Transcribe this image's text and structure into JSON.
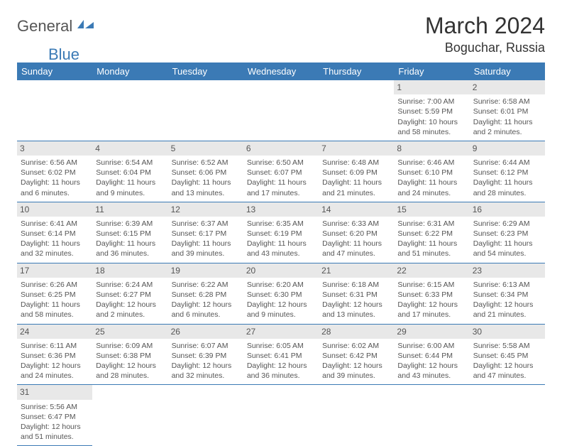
{
  "logo": {
    "general": "General",
    "blue": "Blue"
  },
  "title": "March 2024",
  "location": "Boguchar, Russia",
  "colors": {
    "header_bg": "#3b7ab5",
    "header_fg": "#ffffff",
    "daynum_bg": "#e8e8e8",
    "text": "#555555",
    "border": "#3b7ab5",
    "logo_blue": "#3b7ab5"
  },
  "weekdays": [
    "Sunday",
    "Monday",
    "Tuesday",
    "Wednesday",
    "Thursday",
    "Friday",
    "Saturday"
  ],
  "weeks": [
    [
      null,
      null,
      null,
      null,
      null,
      {
        "n": "1",
        "sr": "7:00 AM",
        "ss": "5:59 PM",
        "dl": "10 hours and 58 minutes."
      },
      {
        "n": "2",
        "sr": "6:58 AM",
        "ss": "6:01 PM",
        "dl": "11 hours and 2 minutes."
      }
    ],
    [
      {
        "n": "3",
        "sr": "6:56 AM",
        "ss": "6:02 PM",
        "dl": "11 hours and 6 minutes."
      },
      {
        "n": "4",
        "sr": "6:54 AM",
        "ss": "6:04 PM",
        "dl": "11 hours and 9 minutes."
      },
      {
        "n": "5",
        "sr": "6:52 AM",
        "ss": "6:06 PM",
        "dl": "11 hours and 13 minutes."
      },
      {
        "n": "6",
        "sr": "6:50 AM",
        "ss": "6:07 PM",
        "dl": "11 hours and 17 minutes."
      },
      {
        "n": "7",
        "sr": "6:48 AM",
        "ss": "6:09 PM",
        "dl": "11 hours and 21 minutes."
      },
      {
        "n": "8",
        "sr": "6:46 AM",
        "ss": "6:10 PM",
        "dl": "11 hours and 24 minutes."
      },
      {
        "n": "9",
        "sr": "6:44 AM",
        "ss": "6:12 PM",
        "dl": "11 hours and 28 minutes."
      }
    ],
    [
      {
        "n": "10",
        "sr": "6:41 AM",
        "ss": "6:14 PM",
        "dl": "11 hours and 32 minutes."
      },
      {
        "n": "11",
        "sr": "6:39 AM",
        "ss": "6:15 PM",
        "dl": "11 hours and 36 minutes."
      },
      {
        "n": "12",
        "sr": "6:37 AM",
        "ss": "6:17 PM",
        "dl": "11 hours and 39 minutes."
      },
      {
        "n": "13",
        "sr": "6:35 AM",
        "ss": "6:19 PM",
        "dl": "11 hours and 43 minutes."
      },
      {
        "n": "14",
        "sr": "6:33 AM",
        "ss": "6:20 PM",
        "dl": "11 hours and 47 minutes."
      },
      {
        "n": "15",
        "sr": "6:31 AM",
        "ss": "6:22 PM",
        "dl": "11 hours and 51 minutes."
      },
      {
        "n": "16",
        "sr": "6:29 AM",
        "ss": "6:23 PM",
        "dl": "11 hours and 54 minutes."
      }
    ],
    [
      {
        "n": "17",
        "sr": "6:26 AM",
        "ss": "6:25 PM",
        "dl": "11 hours and 58 minutes."
      },
      {
        "n": "18",
        "sr": "6:24 AM",
        "ss": "6:27 PM",
        "dl": "12 hours and 2 minutes."
      },
      {
        "n": "19",
        "sr": "6:22 AM",
        "ss": "6:28 PM",
        "dl": "12 hours and 6 minutes."
      },
      {
        "n": "20",
        "sr": "6:20 AM",
        "ss": "6:30 PM",
        "dl": "12 hours and 9 minutes."
      },
      {
        "n": "21",
        "sr": "6:18 AM",
        "ss": "6:31 PM",
        "dl": "12 hours and 13 minutes."
      },
      {
        "n": "22",
        "sr": "6:15 AM",
        "ss": "6:33 PM",
        "dl": "12 hours and 17 minutes."
      },
      {
        "n": "23",
        "sr": "6:13 AM",
        "ss": "6:34 PM",
        "dl": "12 hours and 21 minutes."
      }
    ],
    [
      {
        "n": "24",
        "sr": "6:11 AM",
        "ss": "6:36 PM",
        "dl": "12 hours and 24 minutes."
      },
      {
        "n": "25",
        "sr": "6:09 AM",
        "ss": "6:38 PM",
        "dl": "12 hours and 28 minutes."
      },
      {
        "n": "26",
        "sr": "6:07 AM",
        "ss": "6:39 PM",
        "dl": "12 hours and 32 minutes."
      },
      {
        "n": "27",
        "sr": "6:05 AM",
        "ss": "6:41 PM",
        "dl": "12 hours and 36 minutes."
      },
      {
        "n": "28",
        "sr": "6:02 AM",
        "ss": "6:42 PM",
        "dl": "12 hours and 39 minutes."
      },
      {
        "n": "29",
        "sr": "6:00 AM",
        "ss": "6:44 PM",
        "dl": "12 hours and 43 minutes."
      },
      {
        "n": "30",
        "sr": "5:58 AM",
        "ss": "6:45 PM",
        "dl": "12 hours and 47 minutes."
      }
    ],
    [
      {
        "n": "31",
        "sr": "5:56 AM",
        "ss": "6:47 PM",
        "dl": "12 hours and 51 minutes."
      },
      null,
      null,
      null,
      null,
      null,
      null
    ]
  ],
  "labels": {
    "sunrise": "Sunrise:",
    "sunset": "Sunset:",
    "daylight": "Daylight:"
  }
}
